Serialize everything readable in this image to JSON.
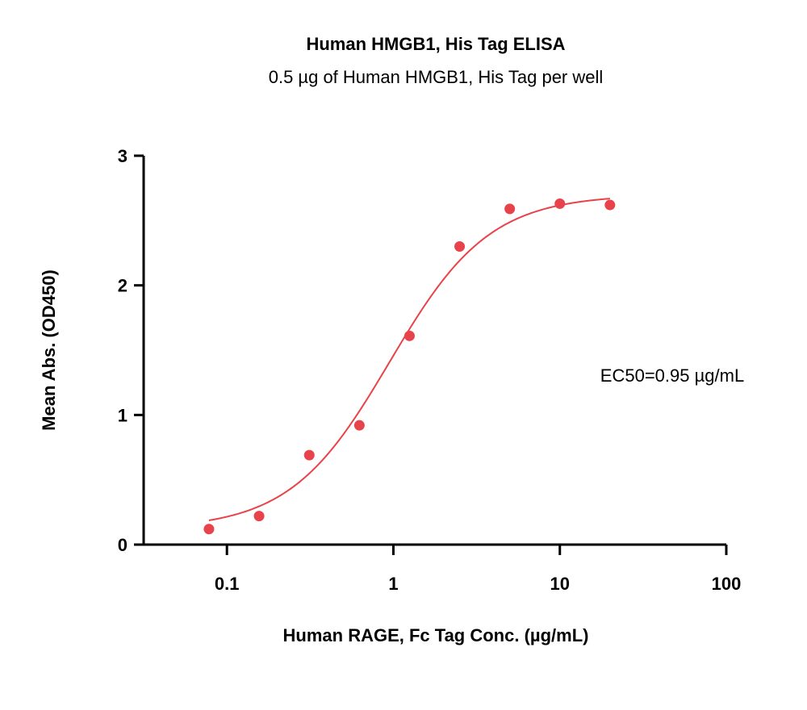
{
  "chart_data": {
    "type": "scatter",
    "title": "Human HMGB1, His Tag ELISA",
    "subtitle": "0.5 µg of Human HMGB1, His Tag per well",
    "xlabel": "Human RAGE, Fc Tag Conc. (µg/mL)",
    "ylabel": "Mean Abs. (OD450)",
    "x_scale": "log",
    "xlim": [
      0.0316,
      100
    ],
    "ylim": [
      0,
      3
    ],
    "x_ticks": [
      {
        "value": 0.1,
        "label": "0.1"
      },
      {
        "value": 1,
        "label": "1"
      },
      {
        "value": 10,
        "label": "10"
      },
      {
        "value": 100,
        "label": "100"
      }
    ],
    "y_ticks": [
      {
        "value": 0,
        "label": "0"
      },
      {
        "value": 1,
        "label": "1"
      },
      {
        "value": 2,
        "label": "2"
      },
      {
        "value": 3,
        "label": "3"
      }
    ],
    "grid": false,
    "series": [
      {
        "color": "#e8434a",
        "x": [
          0.078,
          0.156,
          0.3125,
          0.625,
          1.25,
          2.5,
          5,
          10,
          20
        ],
        "y": [
          0.12,
          0.22,
          0.69,
          0.92,
          1.61,
          2.3,
          2.59,
          2.63,
          2.62
        ]
      }
    ],
    "fit": {
      "type": "4PL",
      "color": "#e8434a",
      "bottom": 0.12,
      "top": 2.7,
      "ec50": 0.95,
      "hill": 1.45,
      "x_range": [
        0.078,
        20
      ]
    },
    "annotations": [
      {
        "text": "EC50=0.95 µg/mL"
      }
    ]
  }
}
